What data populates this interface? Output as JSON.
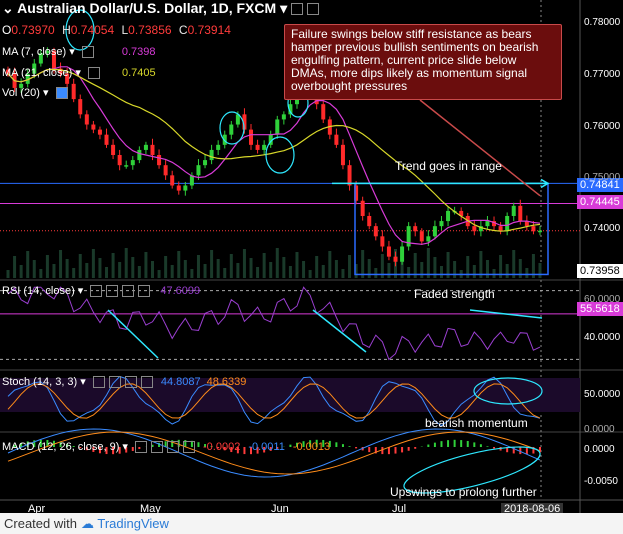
{
  "header": {
    "title": "Australian Dollar/U.S. Dollar, 1D, FXCM",
    "open_label": "O",
    "open": "0.73970",
    "high_label": "H",
    "high": "0.74054",
    "low_label": "L",
    "low": "0.73856",
    "close_label": "C",
    "close": "0.73914"
  },
  "indicators": {
    "ma7_label": "MA (7, close)",
    "ma7_value": "0.7398",
    "ma21_label": "MA (21, close)",
    "ma21_value": "0.7405",
    "vol_label": "Vol (20)",
    "rsi_label": "RSI (14, close)",
    "rsi_value": "47.6099",
    "stoch_label": "Stoch (14, 3, 3)",
    "stoch_k": "44.8087",
    "stoch_d": "48.6339",
    "macd_label": "MACD (12, 26, close, 9)",
    "macd_v1": "-0.0002",
    "macd_v2": "-0.0011",
    "macd_v3": "-0.0013"
  },
  "callout": "Failure swings below stiff resistance as bears hamper previous bullish sentiments on bearish engulfing pattern, current price slide below DMAs, more dips likely as momentum signal overbought pressures",
  "annotations": {
    "range": "Trend goes in range",
    "faded": "Faded strength",
    "bearish": "bearish momentum",
    "upswings": "Upswings to prolong further"
  },
  "price_labels": {
    "p1": "0.74841",
    "p2": "0.74445",
    "p3": "0.73958",
    "rsi_mark": "55.5618"
  },
  "axis": {
    "price_ticks": [
      "0.78000",
      "0.77000",
      "0.76000",
      "0.75000",
      "0.74000"
    ],
    "rsi_ticks": [
      "60.0000",
      "40.0000"
    ],
    "stoch_ticks": [
      "50.0000",
      "0.0000"
    ],
    "macd_ticks": [
      "0.0000",
      "-0.0050"
    ],
    "months": [
      "Apr",
      "May",
      "Jun",
      "Jul"
    ],
    "date_label": "2018-08-06"
  },
  "footer": {
    "created": "Created with",
    "brand": "TradingView"
  },
  "colors": {
    "up": "#2fd13a",
    "down": "#ff2a2a",
    "ma7": "#d83bd8",
    "ma21": "#d8d82a",
    "rsi": "#9a3fd0",
    "k": "#3a8bff",
    "d": "#ff8c1a"
  },
  "chart_data": {
    "type": "candlestick",
    "title": "Australian Dollar/U.S. Dollar, 1D, FXCM",
    "x_range": [
      "2018-03-29",
      "2018-08-06"
    ],
    "ylim": [
      0.7298,
      0.7845
    ],
    "approx_close_path": [
      0.77,
      0.7672,
      0.768,
      0.77,
      0.772,
      0.774,
      0.7745,
      0.771,
      0.77,
      0.768,
      0.765,
      0.762,
      0.76,
      0.759,
      0.758,
      0.756,
      0.754,
      0.752,
      0.752,
      0.753,
      0.755,
      0.756,
      0.754,
      0.752,
      0.75,
      0.748,
      0.747,
      0.748,
      0.75,
      0.752,
      0.753,
      0.755,
      0.756,
      0.758,
      0.76,
      0.762,
      0.759,
      0.756,
      0.755,
      0.756,
      0.758,
      0.761,
      0.762,
      0.764,
      0.766,
      0.769,
      0.767,
      0.764,
      0.761,
      0.758,
      0.756,
      0.752,
      0.748,
      0.745,
      0.742,
      0.74,
      0.738,
      0.736,
      0.734,
      0.733,
      0.736,
      0.74,
      0.739,
      0.737,
      0.738,
      0.74,
      0.741,
      0.743,
      0.743,
      0.742,
      0.74,
      0.739,
      0.74,
      0.741,
      0.74,
      0.739,
      0.742,
      0.744,
      0.741,
      0.74,
      0.739,
      0.7391
    ]
  }
}
